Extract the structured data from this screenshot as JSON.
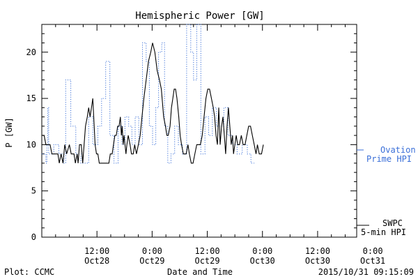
{
  "chart_data": {
    "type": "line",
    "title": "Hemispheric Power [GW]",
    "ylabel": "P [GW]",
    "xlabel": "Date and Time",
    "ylim": [
      0,
      23
    ],
    "xlim": [
      0,
      68.5
    ],
    "x_unit": "hours since 2015-10-28 00:00",
    "y_ticks": [
      0,
      5,
      10,
      15,
      20
    ],
    "x_ticks": [
      {
        "x": 12,
        "line1": "12:00",
        "line2": "Oct28"
      },
      {
        "x": 24,
        "line1": "0:00",
        "line2": "Oct29"
      },
      {
        "x": 36,
        "line1": "12:00",
        "line2": "Oct29"
      },
      {
        "x": 48,
        "line1": "0:00",
        "line2": "Oct30"
      },
      {
        "x": 60,
        "line1": "12:00",
        "line2": "Oct30"
      },
      {
        "x": 72,
        "line1": "0:00",
        "line2": "Oct31"
      }
    ],
    "grid": false,
    "legend_position": "right",
    "series": [
      {
        "name": "Ovation Prime HPI",
        "color": "#3a6fd8",
        "style": "dotted-step",
        "points": [
          [
            0.0,
            9
          ],
          [
            0.9,
            9
          ],
          [
            0.9,
            8
          ],
          [
            1.1,
            8
          ],
          [
            1.1,
            10
          ],
          [
            1.3,
            10
          ],
          [
            1.3,
            14
          ],
          [
            1.5,
            14
          ],
          [
            1.5,
            9
          ],
          [
            2.6,
            9
          ],
          [
            2.6,
            10
          ],
          [
            3.7,
            10
          ],
          [
            3.7,
            9
          ],
          [
            4.8,
            9
          ],
          [
            4.8,
            8
          ],
          [
            5.2,
            8
          ],
          [
            5.2,
            17
          ],
          [
            6.3,
            17
          ],
          [
            6.3,
            12
          ],
          [
            7.4,
            12
          ],
          [
            7.4,
            9
          ],
          [
            8.5,
            9
          ],
          [
            8.5,
            8
          ],
          [
            10.2,
            8
          ],
          [
            10.2,
            13
          ],
          [
            11.1,
            13
          ],
          [
            11.1,
            10
          ],
          [
            12.2,
            10
          ],
          [
            12.2,
            12
          ],
          [
            13.0,
            12
          ],
          [
            13.0,
            15
          ],
          [
            13.9,
            15
          ],
          [
            13.9,
            19
          ],
          [
            14.8,
            19
          ],
          [
            14.8,
            11
          ],
          [
            15.7,
            11
          ],
          [
            15.7,
            8
          ],
          [
            16.6,
            8
          ],
          [
            16.6,
            12
          ],
          [
            17.4,
            12
          ],
          [
            17.4,
            10
          ],
          [
            18.1,
            10
          ],
          [
            18.1,
            13
          ],
          [
            18.9,
            13
          ],
          [
            18.9,
            12
          ],
          [
            19.6,
            12
          ],
          [
            19.6,
            10
          ],
          [
            20.3,
            10
          ],
          [
            20.3,
            13
          ],
          [
            21.1,
            13
          ],
          [
            21.1,
            10
          ],
          [
            21.9,
            10
          ],
          [
            21.9,
            21
          ],
          [
            22.7,
            21
          ],
          [
            22.7,
            19
          ],
          [
            23.4,
            19
          ],
          [
            23.4,
            12
          ],
          [
            24.1,
            12
          ],
          [
            24.1,
            10
          ],
          [
            24.8,
            10
          ],
          [
            24.8,
            14
          ],
          [
            25.4,
            14
          ],
          [
            25.4,
            20
          ],
          [
            26.1,
            20
          ],
          [
            26.1,
            21
          ],
          [
            26.7,
            21
          ],
          [
            26.7,
            12
          ],
          [
            27.4,
            12
          ],
          [
            27.4,
            8
          ],
          [
            28.1,
            8
          ],
          [
            28.1,
            9
          ],
          [
            28.9,
            9
          ],
          [
            28.9,
            12
          ],
          [
            29.7,
            12
          ],
          [
            29.7,
            10
          ],
          [
            30.6,
            10
          ],
          [
            30.6,
            9
          ],
          [
            31.5,
            9
          ],
          [
            31.5,
            23
          ],
          [
            32.4,
            23
          ],
          [
            32.4,
            20
          ],
          [
            33.0,
            20
          ],
          [
            33.0,
            17
          ],
          [
            33.7,
            17
          ],
          [
            33.7,
            23
          ],
          [
            34.6,
            23
          ],
          [
            34.6,
            9
          ],
          [
            35.5,
            9
          ],
          [
            35.5,
            13
          ],
          [
            36.3,
            13
          ],
          [
            36.3,
            11
          ],
          [
            37.1,
            11
          ],
          [
            37.1,
            14
          ],
          [
            38.0,
            14
          ],
          [
            38.0,
            12
          ],
          [
            39.6,
            12
          ],
          [
            39.6,
            14
          ],
          [
            40.5,
            14
          ],
          [
            40.5,
            11
          ],
          [
            41.5,
            11
          ],
          [
            41.5,
            10
          ],
          [
            42.5,
            10
          ],
          [
            42.5,
            9
          ],
          [
            43.6,
            9
          ],
          [
            43.6,
            10
          ],
          [
            44.7,
            10
          ],
          [
            44.7,
            9
          ],
          [
            45.5,
            9
          ],
          [
            45.5,
            8
          ],
          [
            46.2,
            8
          ]
        ]
      },
      {
        "name": "SWPC 5-min HPI",
        "color": "#000000",
        "style": "solid",
        "points": [
          [
            0.0,
            11
          ],
          [
            0.5,
            11
          ],
          [
            0.9,
            10
          ],
          [
            1.8,
            10
          ],
          [
            2.2,
            9
          ],
          [
            3.5,
            9
          ],
          [
            3.8,
            8
          ],
          [
            4.2,
            9
          ],
          [
            4.6,
            8
          ],
          [
            5.0,
            10
          ],
          [
            5.4,
            9
          ],
          [
            6.0,
            10
          ],
          [
            6.4,
            9
          ],
          [
            7.0,
            9
          ],
          [
            7.3,
            8
          ],
          [
            7.7,
            9
          ],
          [
            7.9,
            8
          ],
          [
            8.2,
            10
          ],
          [
            8.6,
            10
          ],
          [
            8.9,
            8
          ],
          [
            9.2,
            10
          ],
          [
            9.5,
            12
          ],
          [
            9.9,
            13
          ],
          [
            10.2,
            14
          ],
          [
            10.5,
            13
          ],
          [
            10.8,
            14
          ],
          [
            11.1,
            15
          ],
          [
            11.4,
            12
          ],
          [
            11.6,
            10
          ],
          [
            11.9,
            9
          ],
          [
            12.2,
            9
          ],
          [
            12.5,
            8
          ],
          [
            14.6,
            8
          ],
          [
            14.9,
            9
          ],
          [
            15.3,
            9
          ],
          [
            15.6,
            10
          ],
          [
            15.9,
            11
          ],
          [
            16.2,
            11
          ],
          [
            16.5,
            12
          ],
          [
            16.8,
            12
          ],
          [
            17.1,
            13
          ],
          [
            17.3,
            11
          ],
          [
            17.5,
            12
          ],
          [
            17.7,
            10
          ],
          [
            17.9,
            11
          ],
          [
            18.1,
            10
          ],
          [
            18.3,
            9
          ],
          [
            18.5,
            10
          ],
          [
            18.8,
            11
          ],
          [
            19.2,
            10
          ],
          [
            19.5,
            9
          ],
          [
            19.9,
            9
          ],
          [
            20.2,
            10
          ],
          [
            20.6,
            9
          ],
          [
            21.0,
            10
          ],
          [
            21.4,
            11
          ],
          [
            21.8,
            13
          ],
          [
            22.2,
            15
          ],
          [
            22.7,
            17
          ],
          [
            23.2,
            19
          ],
          [
            23.7,
            20
          ],
          [
            24.1,
            21
          ],
          [
            24.6,
            20
          ],
          [
            25.1,
            18
          ],
          [
            25.6,
            17
          ],
          [
            26.0,
            16
          ],
          [
            26.5,
            13
          ],
          [
            26.9,
            12
          ],
          [
            27.2,
            11
          ],
          [
            27.5,
            11
          ],
          [
            27.9,
            12
          ],
          [
            28.2,
            14
          ],
          [
            28.5,
            15
          ],
          [
            28.8,
            16
          ],
          [
            29.1,
            16
          ],
          [
            29.4,
            15
          ],
          [
            29.8,
            13
          ],
          [
            30.1,
            11
          ],
          [
            30.4,
            10
          ],
          [
            30.8,
            9
          ],
          [
            31.4,
            9
          ],
          [
            31.8,
            10
          ],
          [
            32.1,
            9
          ],
          [
            32.5,
            8
          ],
          [
            32.9,
            8
          ],
          [
            33.3,
            9
          ],
          [
            33.7,
            10
          ],
          [
            34.5,
            10
          ],
          [
            34.9,
            11
          ],
          [
            35.3,
            13
          ],
          [
            35.7,
            15
          ],
          [
            36.1,
            16
          ],
          [
            36.5,
            16
          ],
          [
            36.9,
            15
          ],
          [
            37.3,
            14
          ],
          [
            37.6,
            13
          ],
          [
            37.9,
            11
          ],
          [
            38.2,
            10
          ],
          [
            38.5,
            14
          ],
          [
            38.8,
            10
          ],
          [
            39.1,
            12
          ],
          [
            39.4,
            13
          ],
          [
            39.7,
            11
          ],
          [
            40.0,
            9
          ],
          [
            40.3,
            12
          ],
          [
            40.6,
            14
          ],
          [
            40.9,
            12
          ],
          [
            41.2,
            10
          ],
          [
            41.5,
            11
          ],
          [
            41.7,
            9
          ],
          [
            42.0,
            10
          ],
          [
            42.3,
            11
          ],
          [
            42.6,
            10
          ],
          [
            43.0,
            10
          ],
          [
            43.4,
            11
          ],
          [
            43.8,
            10
          ],
          [
            44.2,
            10
          ],
          [
            44.6,
            11
          ],
          [
            45.0,
            12
          ],
          [
            45.4,
            12
          ],
          [
            45.8,
            11
          ],
          [
            46.2,
            10
          ],
          [
            46.6,
            9
          ],
          [
            46.9,
            10
          ],
          [
            47.3,
            9
          ],
          [
            47.8,
            9
          ],
          [
            48.2,
            10
          ]
        ]
      }
    ],
    "annotations": {
      "plot_credit": "Plot: CCMC",
      "timestamp": "2015/10/31 09:15:09"
    }
  },
  "legend": {
    "ovation_line1": "Ovation",
    "ovation_line2": "Prime HPI",
    "swpc_line1": "SWPC",
    "swpc_line2": "5-min HPI"
  }
}
